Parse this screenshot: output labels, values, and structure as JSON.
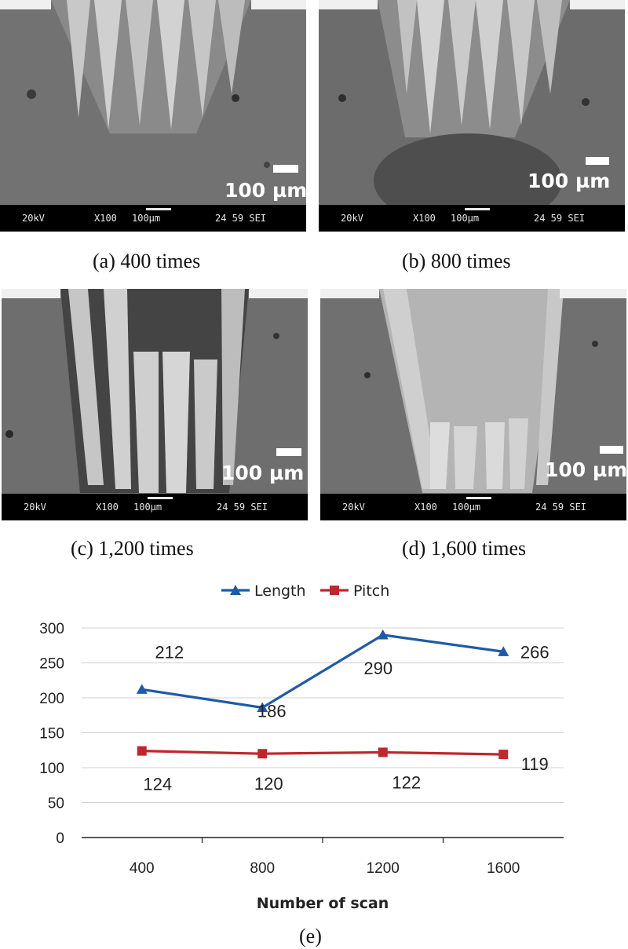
{
  "panels": [
    {
      "caption": "(a) 400 times",
      "scale": "100 µm",
      "kv": "20kV",
      "mag": "X100",
      "mag_scale": "100µm",
      "code": "24 59 SEI"
    },
    {
      "caption": "(b) 800 times",
      "scale": "100 µm",
      "kv": "20kV",
      "mag": "X100",
      "mag_scale": "100µm",
      "code": "24 59 SEI"
    },
    {
      "caption": "(c) 1,200 times",
      "scale": "100 µm",
      "kv": "20kV",
      "mag": "X100",
      "mag_scale": "100µm",
      "code": "24 59 SEI"
    },
    {
      "caption": "(d) 1,600 times",
      "scale": "100 µm",
      "kv": "20kV",
      "mag": "X100",
      "mag_scale": "100µm",
      "code": "24 59 SEI"
    }
  ],
  "figure_caption": "(e)",
  "chart_data": {
    "type": "line",
    "x": [
      400,
      800,
      1200,
      1600
    ],
    "categories": [
      "400",
      "800",
      "1200",
      "1600"
    ],
    "series": [
      {
        "name": "Length",
        "values": [
          212,
          186,
          290,
          266
        ],
        "color": "#1f5aa6",
        "marker": "triangle"
      },
      {
        "name": "Pitch",
        "values": [
          124,
          120,
          122,
          119
        ],
        "color": "#c0262d",
        "marker": "square"
      }
    ],
    "title": "",
    "xlabel": "Number of scan",
    "ylabel": "",
    "ylim": [
      0,
      300
    ],
    "yticks": [
      0,
      50,
      100,
      150,
      200,
      250,
      300
    ],
    "grid": true,
    "legend": "top-center"
  }
}
